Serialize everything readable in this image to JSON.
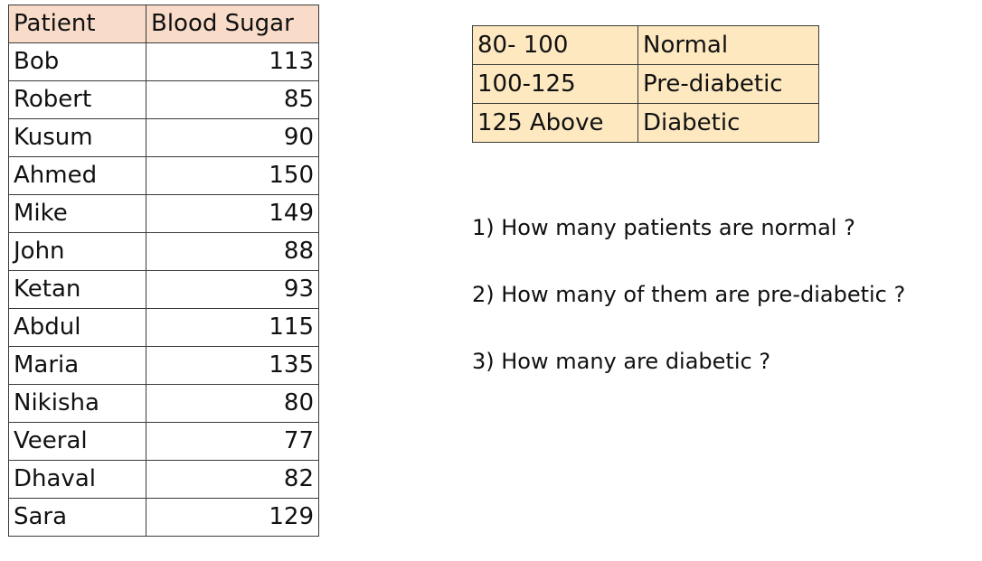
{
  "patient_table": {
    "headers": {
      "name": "Patient",
      "value": "Blood Sugar"
    },
    "rows": [
      {
        "name": "Bob",
        "value": "113"
      },
      {
        "name": "Robert",
        "value": "85"
      },
      {
        "name": "Kusum",
        "value": "90"
      },
      {
        "name": "Ahmed",
        "value": "150"
      },
      {
        "name": "Mike",
        "value": "149"
      },
      {
        "name": "John",
        "value": "88"
      },
      {
        "name": "Ketan",
        "value": "93"
      },
      {
        "name": "Abdul",
        "value": "115"
      },
      {
        "name": "Maria",
        "value": "135"
      },
      {
        "name": "Nikisha",
        "value": "80"
      },
      {
        "name": "Veeral",
        "value": "77"
      },
      {
        "name": "Dhaval",
        "value": "82"
      },
      {
        "name": "Sara",
        "value": "129"
      }
    ]
  },
  "range_table": {
    "rows": [
      {
        "range": "80- 100",
        "category": "Normal"
      },
      {
        "range": "100-125",
        "category": "Pre-diabetic"
      },
      {
        "range": "125 Above",
        "category": "Diabetic"
      }
    ]
  },
  "questions": [
    "1) How many patients are normal ?",
    "2) How many of them are pre-diabetic ?",
    "3) How many are diabetic ?"
  ],
  "colors": {
    "header_fill": "#f8dcc9",
    "range_fill": "#fde8c0",
    "border": "#3a3a3a"
  }
}
